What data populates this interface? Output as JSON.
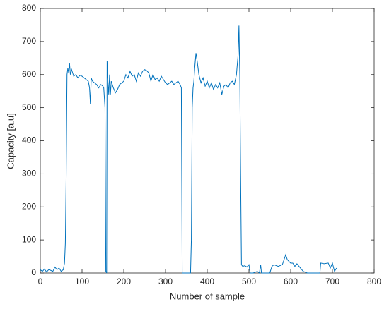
{
  "chart_data": {
    "type": "line",
    "xlabel": "Number of sample",
    "ylabel": "Capacity [a.u]",
    "color": "#0072bd",
    "xlim": [
      0,
      800
    ],
    "xticks": [
      0,
      100,
      200,
      300,
      400,
      500,
      600,
      700,
      800
    ],
    "ylim": [
      0,
      800
    ],
    "yticks": [
      0,
      100,
      200,
      300,
      400,
      500,
      600,
      700,
      800
    ],
    "x": [
      0,
      5,
      10,
      15,
      20,
      25,
      30,
      35,
      40,
      45,
      50,
      55,
      58,
      60,
      62,
      64,
      66,
      68,
      70,
      72,
      75,
      80,
      85,
      90,
      95,
      100,
      105,
      110,
      115,
      118,
      120,
      122,
      125,
      130,
      135,
      140,
      145,
      150,
      152,
      155,
      157,
      159,
      160,
      162,
      164,
      166,
      168,
      170,
      175,
      180,
      185,
      190,
      195,
      200,
      205,
      210,
      215,
      220,
      225,
      230,
      235,
      240,
      245,
      250,
      255,
      260,
      265,
      270,
      275,
      280,
      285,
      290,
      295,
      300,
      305,
      310,
      315,
      320,
      325,
      330,
      335,
      338,
      340,
      345,
      350,
      355,
      360,
      362,
      364,
      366,
      368,
      370,
      373,
      376,
      380,
      385,
      390,
      395,
      400,
      405,
      410,
      415,
      420,
      425,
      430,
      435,
      440,
      445,
      450,
      455,
      460,
      465,
      470,
      474,
      476,
      478,
      480,
      482,
      485,
      490,
      495,
      500,
      503,
      510,
      520,
      525,
      528,
      530,
      540,
      550,
      555,
      560,
      570,
      580,
      588,
      592,
      600,
      605,
      610,
      615,
      620,
      630,
      640,
      650,
      660,
      670,
      672,
      680,
      690,
      695,
      700,
      705,
      710
    ],
    "values": [
      10,
      5,
      12,
      3,
      10,
      8,
      5,
      18,
      10,
      15,
      5,
      10,
      30,
      90,
      300,
      600,
      620,
      605,
      635,
      600,
      615,
      595,
      600,
      590,
      598,
      595,
      590,
      585,
      580,
      560,
      510,
      590,
      580,
      575,
      570,
      560,
      570,
      565,
      560,
      500,
      5,
      0,
      640,
      580,
      540,
      600,
      540,
      580,
      560,
      545,
      555,
      570,
      575,
      580,
      600,
      590,
      610,
      595,
      600,
      580,
      605,
      595,
      610,
      615,
      612,
      605,
      580,
      600,
      585,
      590,
      580,
      595,
      585,
      575,
      570,
      575,
      580,
      570,
      575,
      580,
      570,
      560,
      0,
      0,
      0,
      0,
      0,
      100,
      500,
      560,
      580,
      620,
      665,
      640,
      600,
      575,
      590,
      565,
      580,
      560,
      575,
      555,
      570,
      560,
      575,
      540,
      565,
      570,
      560,
      575,
      580,
      570,
      600,
      660,
      748,
      600,
      300,
      25,
      20,
      22,
      18,
      25,
      0,
      0,
      5,
      0,
      25,
      0,
      0,
      0,
      20,
      25,
      20,
      25,
      55,
      40,
      30,
      30,
      20,
      28,
      20,
      5,
      0,
      0,
      0,
      0,
      30,
      28,
      30,
      15,
      30,
      5,
      15
    ]
  }
}
